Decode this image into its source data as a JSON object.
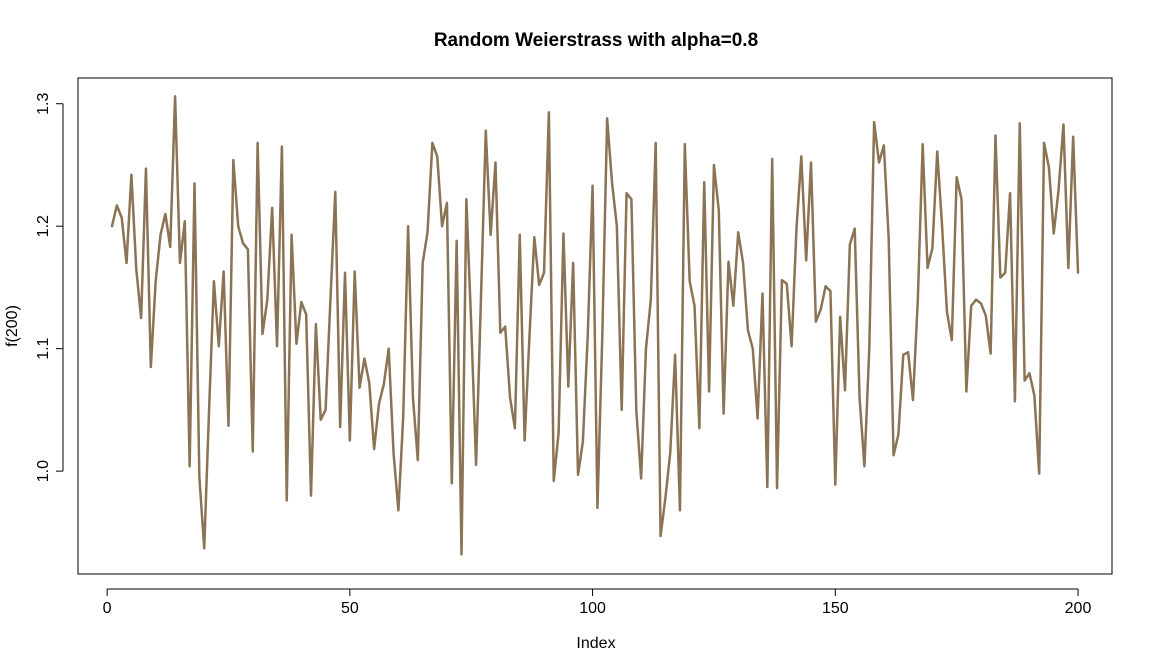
{
  "chart_data": {
    "type": "line",
    "title": "Random Weierstrass with alpha=0.8",
    "xlabel": "Index",
    "ylabel": "f(200)",
    "xlim": [
      -6,
      207
    ],
    "ylim": [
      0.916,
      1.321
    ],
    "x_ticks": [
      0,
      50,
      100,
      150,
      200
    ],
    "x_tick_labels": [
      "0",
      "50",
      "100",
      "150",
      "200"
    ],
    "y_ticks": [
      1.0,
      1.1,
      1.2,
      1.3
    ],
    "y_tick_labels": [
      "1.0",
      "1.1",
      "1.2",
      "1.3"
    ],
    "grid": false,
    "legend": "none",
    "series": [
      {
        "color": "#8b7355",
        "x_start": 1,
        "x_step": 1,
        "values": [
          1.2,
          1.217,
          1.207,
          1.17,
          1.242,
          1.165,
          1.125,
          1.247,
          1.085,
          1.155,
          1.193,
          1.21,
          1.183,
          1.306,
          1.17,
          1.204,
          1.004,
          1.235,
          0.995,
          0.937,
          1.05,
          1.155,
          1.102,
          1.163,
          1.037,
          1.254,
          1.2,
          1.186,
          1.181,
          1.016,
          1.268,
          1.112,
          1.14,
          1.215,
          1.102,
          1.265,
          0.976,
          1.193,
          1.104,
          1.138,
          1.128,
          0.98,
          1.12,
          1.042,
          1.05,
          1.14,
          1.228,
          1.036,
          1.162,
          1.025,
          1.163,
          1.068,
          1.092,
          1.072,
          1.018,
          1.055,
          1.071,
          1.1,
          1.015,
          0.968,
          1.045,
          1.2,
          1.06,
          1.009,
          1.17,
          1.195,
          1.268,
          1.257,
          1.2,
          1.219,
          0.99,
          1.188,
          0.932,
          1.222,
          1.12,
          1.005,
          1.14,
          1.278,
          1.193,
          1.252,
          1.113,
          1.118,
          1.06,
          1.035,
          1.193,
          1.025,
          1.11,
          1.191,
          1.152,
          1.162,
          1.293,
          0.992,
          1.031,
          1.194,
          1.069,
          1.17,
          0.997,
          1.024,
          1.11,
          1.233,
          0.97,
          1.11,
          1.288,
          1.236,
          1.2,
          1.05,
          1.227,
          1.222,
          1.05,
          0.994,
          1.1,
          1.14,
          1.268,
          0.947,
          0.978,
          1.015,
          1.095,
          0.968,
          1.267,
          1.155,
          1.135,
          1.035,
          1.236,
          1.065,
          1.25,
          1.213,
          1.047,
          1.171,
          1.135,
          1.195,
          1.17,
          1.115,
          1.1,
          1.043,
          1.145,
          0.987,
          1.255,
          0.986,
          1.156,
          1.153,
          1.102,
          1.198,
          1.257,
          1.172,
          1.252,
          1.122,
          1.132,
          1.151,
          1.147,
          0.989,
          1.126,
          1.066,
          1.185,
          1.198,
          1.06,
          1.004,
          1.1,
          1.285,
          1.252,
          1.266,
          1.19,
          1.013,
          1.03,
          1.095,
          1.097,
          1.058,
          1.14,
          1.267,
          1.166,
          1.182,
          1.261,
          1.2,
          1.13,
          1.107,
          1.24,
          1.222,
          1.065,
          1.135,
          1.14,
          1.137,
          1.127,
          1.096,
          1.274,
          1.158,
          1.162,
          1.227,
          1.057,
          1.284,
          1.074,
          1.08,
          1.062,
          0.998,
          1.268,
          1.248,
          1.194,
          1.23,
          1.283,
          1.166,
          1.273,
          1.162
        ]
      }
    ]
  }
}
